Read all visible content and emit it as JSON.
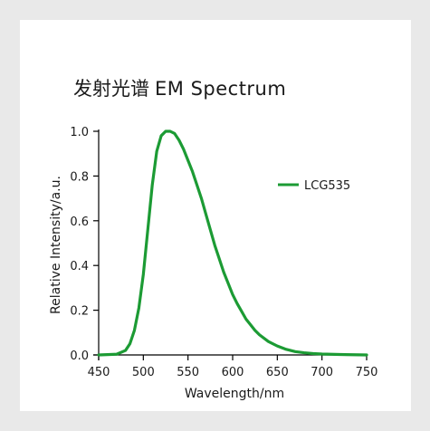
{
  "header": {
    "title_cn": "发射光谱",
    "title_en": "EM Spectrum"
  },
  "chart_data": {
    "type": "line",
    "title": "发射光谱 EM Spectrum",
    "xlabel": "Wavelength/nm",
    "ylabel": "Relative  Intensity/a.u.",
    "xlim": [
      450,
      750
    ],
    "ylim": [
      0,
      1.0
    ],
    "xticks": [
      450,
      500,
      550,
      600,
      650,
      700,
      750
    ],
    "yticks": [
      0.0,
      0.2,
      0.4,
      0.6,
      0.8,
      1.0
    ],
    "xtick_labels": [
      "450",
      "500",
      "550",
      "600",
      "650",
      "700",
      "750"
    ],
    "ytick_labels": [
      "0.0",
      "0.2",
      "0.4",
      "0.6",
      "0.8",
      "1.0"
    ],
    "grid": false,
    "legend": "right",
    "series": [
      {
        "name": "LCG535",
        "color": "#1c9b34",
        "x": [
          450,
          470,
          480,
          485,
          490,
          495,
          500,
          505,
          510,
          515,
          520,
          525,
          530,
          535,
          540,
          545,
          550,
          555,
          560,
          565,
          570,
          575,
          580,
          585,
          590,
          595,
          600,
          605,
          610,
          615,
          620,
          625,
          630,
          640,
          650,
          660,
          670,
          680,
          690,
          700,
          720,
          750
        ],
        "y": [
          0.0,
          0.003,
          0.02,
          0.05,
          0.11,
          0.21,
          0.36,
          0.56,
          0.76,
          0.91,
          0.98,
          1.0,
          1.0,
          0.99,
          0.96,
          0.92,
          0.87,
          0.82,
          0.76,
          0.7,
          0.63,
          0.56,
          0.49,
          0.43,
          0.37,
          0.32,
          0.27,
          0.23,
          0.195,
          0.16,
          0.135,
          0.11,
          0.09,
          0.06,
          0.04,
          0.025,
          0.015,
          0.01,
          0.006,
          0.004,
          0.002,
          0.0
        ]
      }
    ]
  }
}
